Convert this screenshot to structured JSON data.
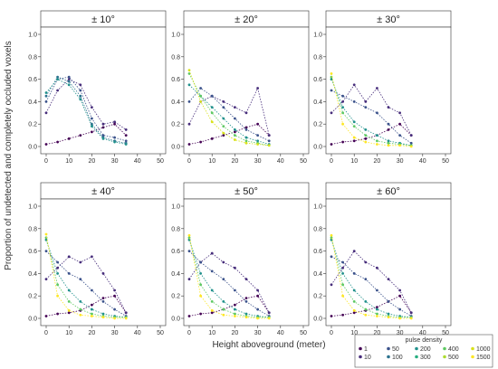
{
  "figure": {
    "ylabel": "Proportion of undetected and completely occluded voxels",
    "xlabel": "Height aboveground (meter)"
  },
  "legend": {
    "title": "pulse density",
    "placement": "bottom-right",
    "entries": [
      {
        "label": "1",
        "color": "#440154"
      },
      {
        "label": "10",
        "color": "#472d7b"
      },
      {
        "label": "50",
        "color": "#3b528b"
      },
      {
        "label": "100",
        "color": "#2c728e"
      },
      {
        "label": "200",
        "color": "#21918c"
      },
      {
        "label": "300",
        "color": "#28ae80"
      },
      {
        "label": "400",
        "color": "#5ec962"
      },
      {
        "label": "500",
        "color": "#addc30"
      },
      {
        "label": "1000",
        "color": "#d8e219"
      },
      {
        "label": "1500",
        "color": "#fde725"
      }
    ]
  },
  "chart_data": [
    {
      "type": "scatter",
      "title": "± 10°",
      "xlim": [
        0,
        50
      ],
      "ylim": [
        0,
        1
      ],
      "xticks": [
        "0",
        "10",
        "20",
        "30",
        "40",
        "50"
      ],
      "yticks": [
        "0.0",
        "0.2",
        "0.4",
        "0.6",
        "0.8",
        "1.0"
      ],
      "series": [
        {
          "name": "1",
          "x": [
            0,
            5,
            10,
            15,
            20,
            25,
            30,
            35
          ],
          "y": [
            0.02,
            0.04,
            0.07,
            0.1,
            0.13,
            0.17,
            0.2,
            0.1
          ]
        },
        {
          "name": "10",
          "x": [
            0,
            5,
            10,
            15,
            20,
            25,
            30,
            35
          ],
          "y": [
            0.3,
            0.5,
            0.6,
            0.55,
            0.35,
            0.2,
            0.22,
            0.15
          ]
        },
        {
          "name": "50",
          "x": [
            0,
            5,
            10,
            15,
            20,
            25,
            30,
            35
          ],
          "y": [
            0.4,
            0.6,
            0.62,
            0.5,
            0.25,
            0.1,
            0.08,
            0.05
          ]
        },
        {
          "name": "100",
          "x": [
            0,
            5,
            10,
            15,
            20,
            25,
            30,
            35
          ],
          "y": [
            0.45,
            0.62,
            0.58,
            0.45,
            0.2,
            0.08,
            0.05,
            0.03
          ]
        },
        {
          "name": "200",
          "x": [
            0,
            5,
            10,
            15,
            20,
            25,
            30,
            35
          ],
          "y": [
            0.48,
            0.6,
            0.55,
            0.42,
            0.18,
            0.07,
            0.04,
            0.02
          ]
        }
      ]
    },
    {
      "type": "scatter",
      "title": "± 20°",
      "xlim": [
        0,
        50
      ],
      "ylim": [
        0,
        1
      ],
      "xticks": [
        "0",
        "10",
        "20",
        "30",
        "40",
        "50"
      ],
      "yticks": [
        "0.0",
        "0.2",
        "0.4",
        "0.6",
        "0.8",
        "1.0"
      ],
      "series": [
        {
          "name": "1",
          "x": [
            0,
            5,
            10,
            15,
            20,
            25,
            30,
            35
          ],
          "y": [
            0.02,
            0.04,
            0.07,
            0.1,
            0.13,
            0.17,
            0.2,
            0.1
          ]
        },
        {
          "name": "10",
          "x": [
            0,
            5,
            10,
            15,
            20,
            25,
            30,
            35
          ],
          "y": [
            0.2,
            0.4,
            0.45,
            0.4,
            0.35,
            0.3,
            0.52,
            0.1
          ]
        },
        {
          "name": "50",
          "x": [
            0,
            5,
            10,
            15,
            20,
            25,
            30,
            35
          ],
          "y": [
            0.4,
            0.52,
            0.45,
            0.35,
            0.25,
            0.15,
            0.1,
            0.05
          ]
        },
        {
          "name": "200",
          "x": [
            0,
            5,
            10,
            15,
            20,
            25,
            30,
            35
          ],
          "y": [
            0.55,
            0.45,
            0.35,
            0.25,
            0.15,
            0.08,
            0.05,
            0.02
          ]
        },
        {
          "name": "400",
          "x": [
            0,
            5,
            10,
            15,
            20,
            25,
            30,
            35
          ],
          "y": [
            0.65,
            0.45,
            0.3,
            0.18,
            0.1,
            0.05,
            0.03,
            0.01
          ]
        },
        {
          "name": "1000",
          "x": [
            0,
            5,
            10,
            15,
            20,
            25,
            30,
            35
          ],
          "y": [
            0.68,
            0.4,
            0.22,
            0.12,
            0.06,
            0.03,
            0.02,
            0.01
          ]
        }
      ]
    },
    {
      "type": "scatter",
      "title": "± 30°",
      "xlim": [
        0,
        50
      ],
      "ylim": [
        0,
        1
      ],
      "xticks": [
        "0",
        "10",
        "20",
        "30",
        "40",
        "50"
      ],
      "yticks": [
        "0.0",
        "0.2",
        "0.4",
        "0.6",
        "0.8",
        "1.0"
      ],
      "series": [
        {
          "name": "1",
          "x": [
            0,
            5,
            10,
            15,
            20,
            25,
            30,
            35
          ],
          "y": [
            0.02,
            0.04,
            0.05,
            0.07,
            0.1,
            0.15,
            0.2,
            0.1
          ]
        },
        {
          "name": "10",
          "x": [
            0,
            5,
            10,
            15,
            20,
            25,
            30,
            35
          ],
          "y": [
            0.3,
            0.4,
            0.55,
            0.4,
            0.52,
            0.35,
            0.3,
            0.1
          ]
        },
        {
          "name": "50",
          "x": [
            0,
            5,
            10,
            15,
            20,
            25,
            30,
            35
          ],
          "y": [
            0.5,
            0.45,
            0.4,
            0.35,
            0.3,
            0.2,
            0.1,
            0.03
          ]
        },
        {
          "name": "200",
          "x": [
            0,
            5,
            10,
            15,
            20,
            25,
            30,
            35
          ],
          "y": [
            0.6,
            0.35,
            0.22,
            0.15,
            0.1,
            0.05,
            0.03,
            0.01
          ]
        },
        {
          "name": "400",
          "x": [
            0,
            5,
            10,
            15,
            20,
            25,
            30,
            35
          ],
          "y": [
            0.62,
            0.3,
            0.18,
            0.1,
            0.05,
            0.03,
            0.02,
            0.01
          ]
        },
        {
          "name": "1500",
          "x": [
            0,
            5,
            10,
            15,
            20,
            25,
            30,
            35
          ],
          "y": [
            0.65,
            0.2,
            0.08,
            0.04,
            0.02,
            0.01,
            0.01,
            0.0
          ]
        }
      ]
    },
    {
      "type": "scatter",
      "title": "± 40°",
      "xlim": [
        0,
        50
      ],
      "ylim": [
        0,
        1
      ],
      "xticks": [
        "0",
        "10",
        "20",
        "30",
        "40",
        "50"
      ],
      "yticks": [
        "0.0",
        "0.2",
        "0.4",
        "0.6",
        "0.8",
        "1.0"
      ],
      "series": [
        {
          "name": "1",
          "x": [
            0,
            5,
            10,
            15,
            20,
            25,
            30,
            35
          ],
          "y": [
            0.02,
            0.04,
            0.05,
            0.07,
            0.12,
            0.18,
            0.2,
            0.05
          ]
        },
        {
          "name": "10",
          "x": [
            0,
            5,
            10,
            15,
            20,
            25,
            30,
            35
          ],
          "y": [
            0.35,
            0.45,
            0.55,
            0.5,
            0.55,
            0.4,
            0.25,
            0.05
          ]
        },
        {
          "name": "50",
          "x": [
            0,
            5,
            10,
            15,
            20,
            25,
            30,
            35
          ],
          "y": [
            0.6,
            0.5,
            0.4,
            0.35,
            0.25,
            0.15,
            0.08,
            0.02
          ]
        },
        {
          "name": "200",
          "x": [
            0,
            5,
            10,
            15,
            20,
            25,
            30,
            35
          ],
          "y": [
            0.7,
            0.4,
            0.25,
            0.15,
            0.08,
            0.04,
            0.02,
            0.01
          ]
        },
        {
          "name": "400",
          "x": [
            0,
            5,
            10,
            15,
            20,
            25,
            30,
            35
          ],
          "y": [
            0.72,
            0.3,
            0.15,
            0.08,
            0.04,
            0.02,
            0.01,
            0.01
          ]
        },
        {
          "name": "1500",
          "x": [
            0,
            5,
            10,
            15,
            20,
            25,
            30,
            35
          ],
          "y": [
            0.75,
            0.2,
            0.07,
            0.03,
            0.02,
            0.01,
            0.0,
            0.0
          ]
        }
      ]
    },
    {
      "type": "scatter",
      "title": "± 50°",
      "xlim": [
        0,
        50
      ],
      "ylim": [
        0,
        1
      ],
      "xticks": [
        "0",
        "10",
        "20",
        "30",
        "40",
        "50"
      ],
      "yticks": [
        "0.0",
        "0.2",
        "0.4",
        "0.6",
        "0.8",
        "1.0"
      ],
      "series": [
        {
          "name": "1",
          "x": [
            0,
            5,
            10,
            15,
            20,
            25,
            30,
            35
          ],
          "y": [
            0.02,
            0.04,
            0.05,
            0.08,
            0.12,
            0.18,
            0.2,
            0.05
          ]
        },
        {
          "name": "10",
          "x": [
            0,
            5,
            10,
            15,
            20,
            25,
            30,
            35
          ],
          "y": [
            0.35,
            0.5,
            0.58,
            0.5,
            0.45,
            0.35,
            0.25,
            0.05
          ]
        },
        {
          "name": "50",
          "x": [
            0,
            5,
            10,
            15,
            20,
            25,
            30,
            35
          ],
          "y": [
            0.6,
            0.5,
            0.42,
            0.35,
            0.25,
            0.15,
            0.08,
            0.02
          ]
        },
        {
          "name": "200",
          "x": [
            0,
            5,
            10,
            15,
            20,
            25,
            30,
            35
          ],
          "y": [
            0.7,
            0.4,
            0.25,
            0.15,
            0.08,
            0.04,
            0.02,
            0.01
          ]
        },
        {
          "name": "400",
          "x": [
            0,
            5,
            10,
            15,
            20,
            25,
            30,
            35
          ],
          "y": [
            0.72,
            0.3,
            0.15,
            0.08,
            0.04,
            0.02,
            0.01,
            0.01
          ]
        },
        {
          "name": "1500",
          "x": [
            0,
            5,
            10,
            15,
            20,
            25,
            30,
            35
          ],
          "y": [
            0.74,
            0.2,
            0.07,
            0.03,
            0.02,
            0.01,
            0.0,
            0.0
          ]
        }
      ]
    },
    {
      "type": "scatter",
      "title": "± 60°",
      "xlim": [
        0,
        50
      ],
      "ylim": [
        0,
        1
      ],
      "xticks": [
        "0",
        "10",
        "20",
        "30",
        "40",
        "50"
      ],
      "yticks": [
        "0.0",
        "0.2",
        "0.4",
        "0.6",
        "0.8",
        "1.0"
      ],
      "series": [
        {
          "name": "1",
          "x": [
            0,
            5,
            10,
            15,
            20,
            25,
            30,
            35
          ],
          "y": [
            0.02,
            0.03,
            0.05,
            0.07,
            0.1,
            0.15,
            0.2,
            0.05
          ]
        },
        {
          "name": "10",
          "x": [
            0,
            5,
            10,
            15,
            20,
            25,
            30,
            35
          ],
          "y": [
            0.3,
            0.45,
            0.6,
            0.5,
            0.45,
            0.35,
            0.25,
            0.05
          ]
        },
        {
          "name": "50",
          "x": [
            0,
            5,
            10,
            15,
            20,
            25,
            30,
            35
          ],
          "y": [
            0.55,
            0.5,
            0.4,
            0.35,
            0.25,
            0.15,
            0.08,
            0.02
          ]
        },
        {
          "name": "200",
          "x": [
            0,
            5,
            10,
            15,
            20,
            25,
            30,
            35
          ],
          "y": [
            0.7,
            0.4,
            0.25,
            0.15,
            0.08,
            0.04,
            0.02,
            0.01
          ]
        },
        {
          "name": "400",
          "x": [
            0,
            5,
            10,
            15,
            20,
            25,
            30,
            35
          ],
          "y": [
            0.72,
            0.3,
            0.15,
            0.08,
            0.04,
            0.02,
            0.01,
            0.01
          ]
        },
        {
          "name": "1500",
          "x": [
            0,
            5,
            10,
            15,
            20,
            25,
            30,
            35
          ],
          "y": [
            0.74,
            0.2,
            0.07,
            0.03,
            0.02,
            0.01,
            0.0,
            0.0
          ]
        }
      ]
    }
  ]
}
